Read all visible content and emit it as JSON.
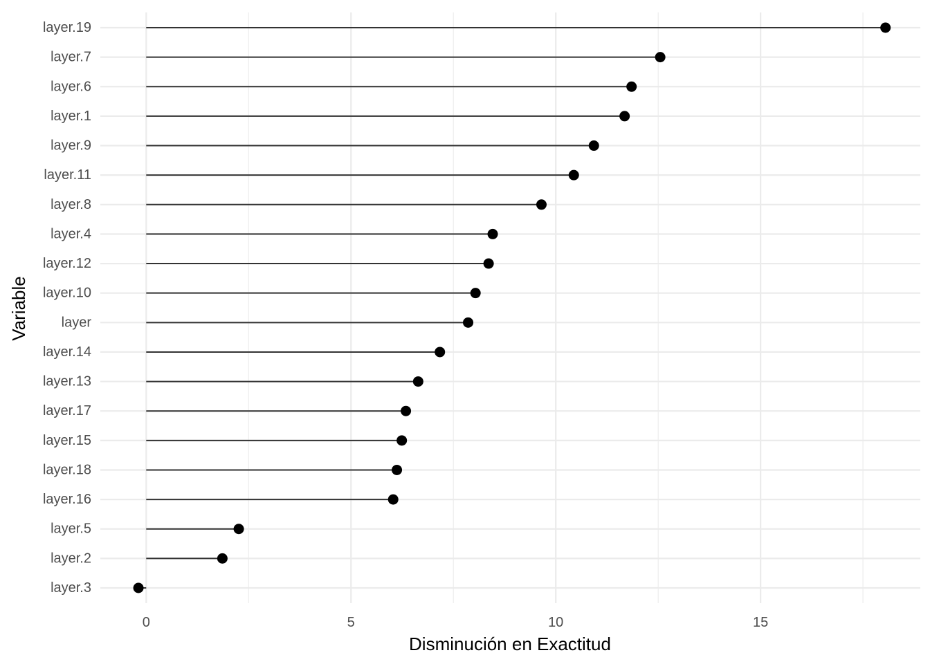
{
  "chart_data": {
    "type": "lollipop",
    "title": "",
    "xlabel": "Disminución en Exactitud",
    "ylabel": "Variable",
    "xlim": [
      -1.12,
      18.9
    ],
    "x_ticks": [
      0,
      5,
      10,
      15
    ],
    "grid": true,
    "legend": "none",
    "categories": [
      "layer.19",
      "layer.7",
      "layer.6",
      "layer.1",
      "layer.9",
      "layer.11",
      "layer.8",
      "layer.4",
      "layer.12",
      "layer.10",
      "layer",
      "layer.14",
      "layer.13",
      "layer.17",
      "layer.15",
      "layer.18",
      "layer.16",
      "layer.5",
      "layer.2",
      "layer.3"
    ],
    "values": [
      18.05,
      12.55,
      11.85,
      11.68,
      10.93,
      10.44,
      9.65,
      8.46,
      8.36,
      8.04,
      7.86,
      7.17,
      6.64,
      6.34,
      6.24,
      6.12,
      6.03,
      2.26,
      1.86,
      -0.19
    ],
    "colors": {
      "point": "#000000",
      "stem": "#333333",
      "grid": "#ebebeb",
      "tick_text": "#4d4d4d",
      "title_text": "#000000"
    }
  }
}
